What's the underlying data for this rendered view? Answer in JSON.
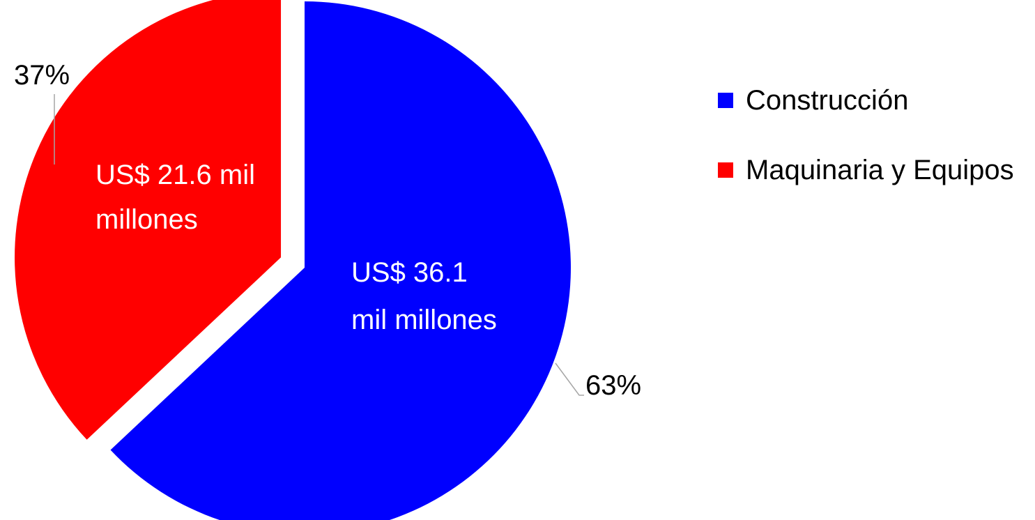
{
  "chart_data": {
    "type": "pie",
    "slices": [
      {
        "name": "Construcción",
        "percent": 63,
        "percent_label": "63%",
        "value_label_line1": "US$ 36.1",
        "value_label_line2": "mil millones",
        "color": "#0000ff",
        "exploded": false
      },
      {
        "name": "Maquinaria y Equipos",
        "percent": 37,
        "percent_label": "37%",
        "value_label_line1": "US$ 21.6 mil",
        "value_label_line2": "millones",
        "color": "#ff0000",
        "exploded": true
      }
    ],
    "legend": {
      "position": "right",
      "items": [
        "Construcción",
        "Maquinaria y Equipos"
      ]
    },
    "start_angle_deg": 0,
    "direction": "clockwise"
  },
  "colors": {
    "construccion": "#0000ff",
    "maquinaria": "#ff0000",
    "leader_line": "#a6a6a6"
  }
}
